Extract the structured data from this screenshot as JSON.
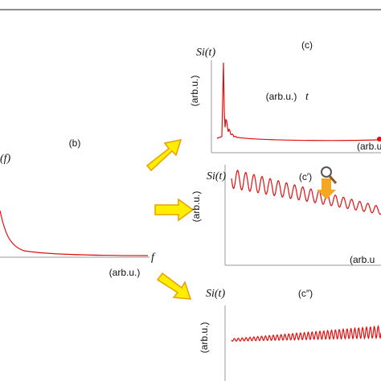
{
  "panels": {
    "b": {
      "label": "(b)",
      "y_label": "(f)",
      "x_var": "f",
      "x_unit": "(arb.u.)"
    },
    "c": {
      "y_var": "Si(t)",
      "label": "(c)",
      "y_unit": "(arb.u.)",
      "x_unit": "(arb.u.)",
      "x_var": "t",
      "x_unit_corner": "(arb.u."
    },
    "c1": {
      "y_var": "Si(t)",
      "label": "(c′)",
      "y_unit": "(arb.u.)",
      "x_unit": "(arb.u"
    },
    "c2": {
      "y_var": "Si(t)",
      "label": "(c″)",
      "y_unit": "(arb.u.)"
    }
  }
}
